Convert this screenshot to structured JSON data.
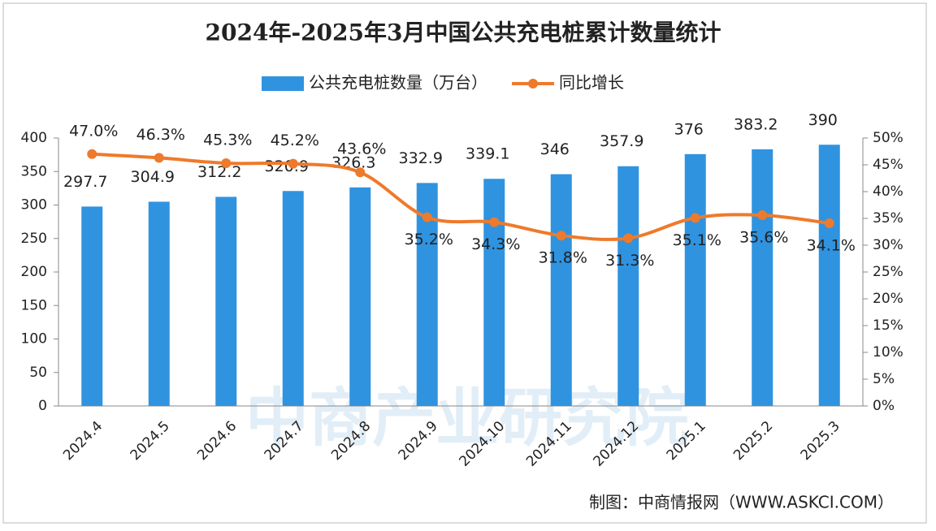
{
  "chart_data": {
    "type": "bar",
    "title": "2024年-2025年3月中国公共充电桩累计数量统计",
    "categories": [
      "2024.4",
      "2024.5",
      "2024.6",
      "2024.7",
      "2024.8",
      "2024.9",
      "2024.10",
      "2024.11",
      "2024.12",
      "2025.1",
      "2025.2",
      "2025.3"
    ],
    "series": [
      {
        "name": "公共充电桩数量（万台）",
        "type": "bar",
        "color": "#2f93e0",
        "values": [
          297.7,
          304.9,
          312.2,
          320.9,
          326.3,
          332.9,
          339.1,
          346,
          357.9,
          376,
          383.2,
          390
        ]
      },
      {
        "name": "同比增长",
        "type": "line",
        "axis": "y2",
        "color": "#ee7a2c",
        "values": [
          47.0,
          46.3,
          45.3,
          45.2,
          43.6,
          35.2,
          34.3,
          31.8,
          31.3,
          35.1,
          35.6,
          34.1
        ],
        "value_labels": [
          "47.0%",
          "46.3%",
          "45.3%",
          "45.2%",
          "43.6%",
          "35.2%",
          "34.3%",
          "31.8%",
          "31.3%",
          "35.1%",
          "35.6%",
          "34.1%"
        ]
      }
    ],
    "ylim": [
      0,
      400
    ],
    "yticks": [
      0,
      50,
      100,
      150,
      200,
      250,
      300,
      350,
      400
    ],
    "y2lim": [
      0,
      50
    ],
    "y2ticks": [
      {
        "value": 0,
        "label": "0%"
      },
      {
        "value": 5,
        "label": "5%"
      },
      {
        "value": 10,
        "label": "10%"
      },
      {
        "value": 15,
        "label": "15%"
      },
      {
        "value": 20,
        "label": "20%"
      },
      {
        "value": 25,
        "label": "25%"
      },
      {
        "value": 30,
        "label": "30%"
      },
      {
        "value": 35,
        "label": "35%"
      },
      {
        "value": 40,
        "label": "40%"
      },
      {
        "value": 45,
        "label": "45%"
      },
      {
        "value": 50,
        "label": "50%"
      }
    ],
    "watermark": "中商产业研究院",
    "source": "制图：中商情报网（WWW.ASKCI.COM）"
  }
}
